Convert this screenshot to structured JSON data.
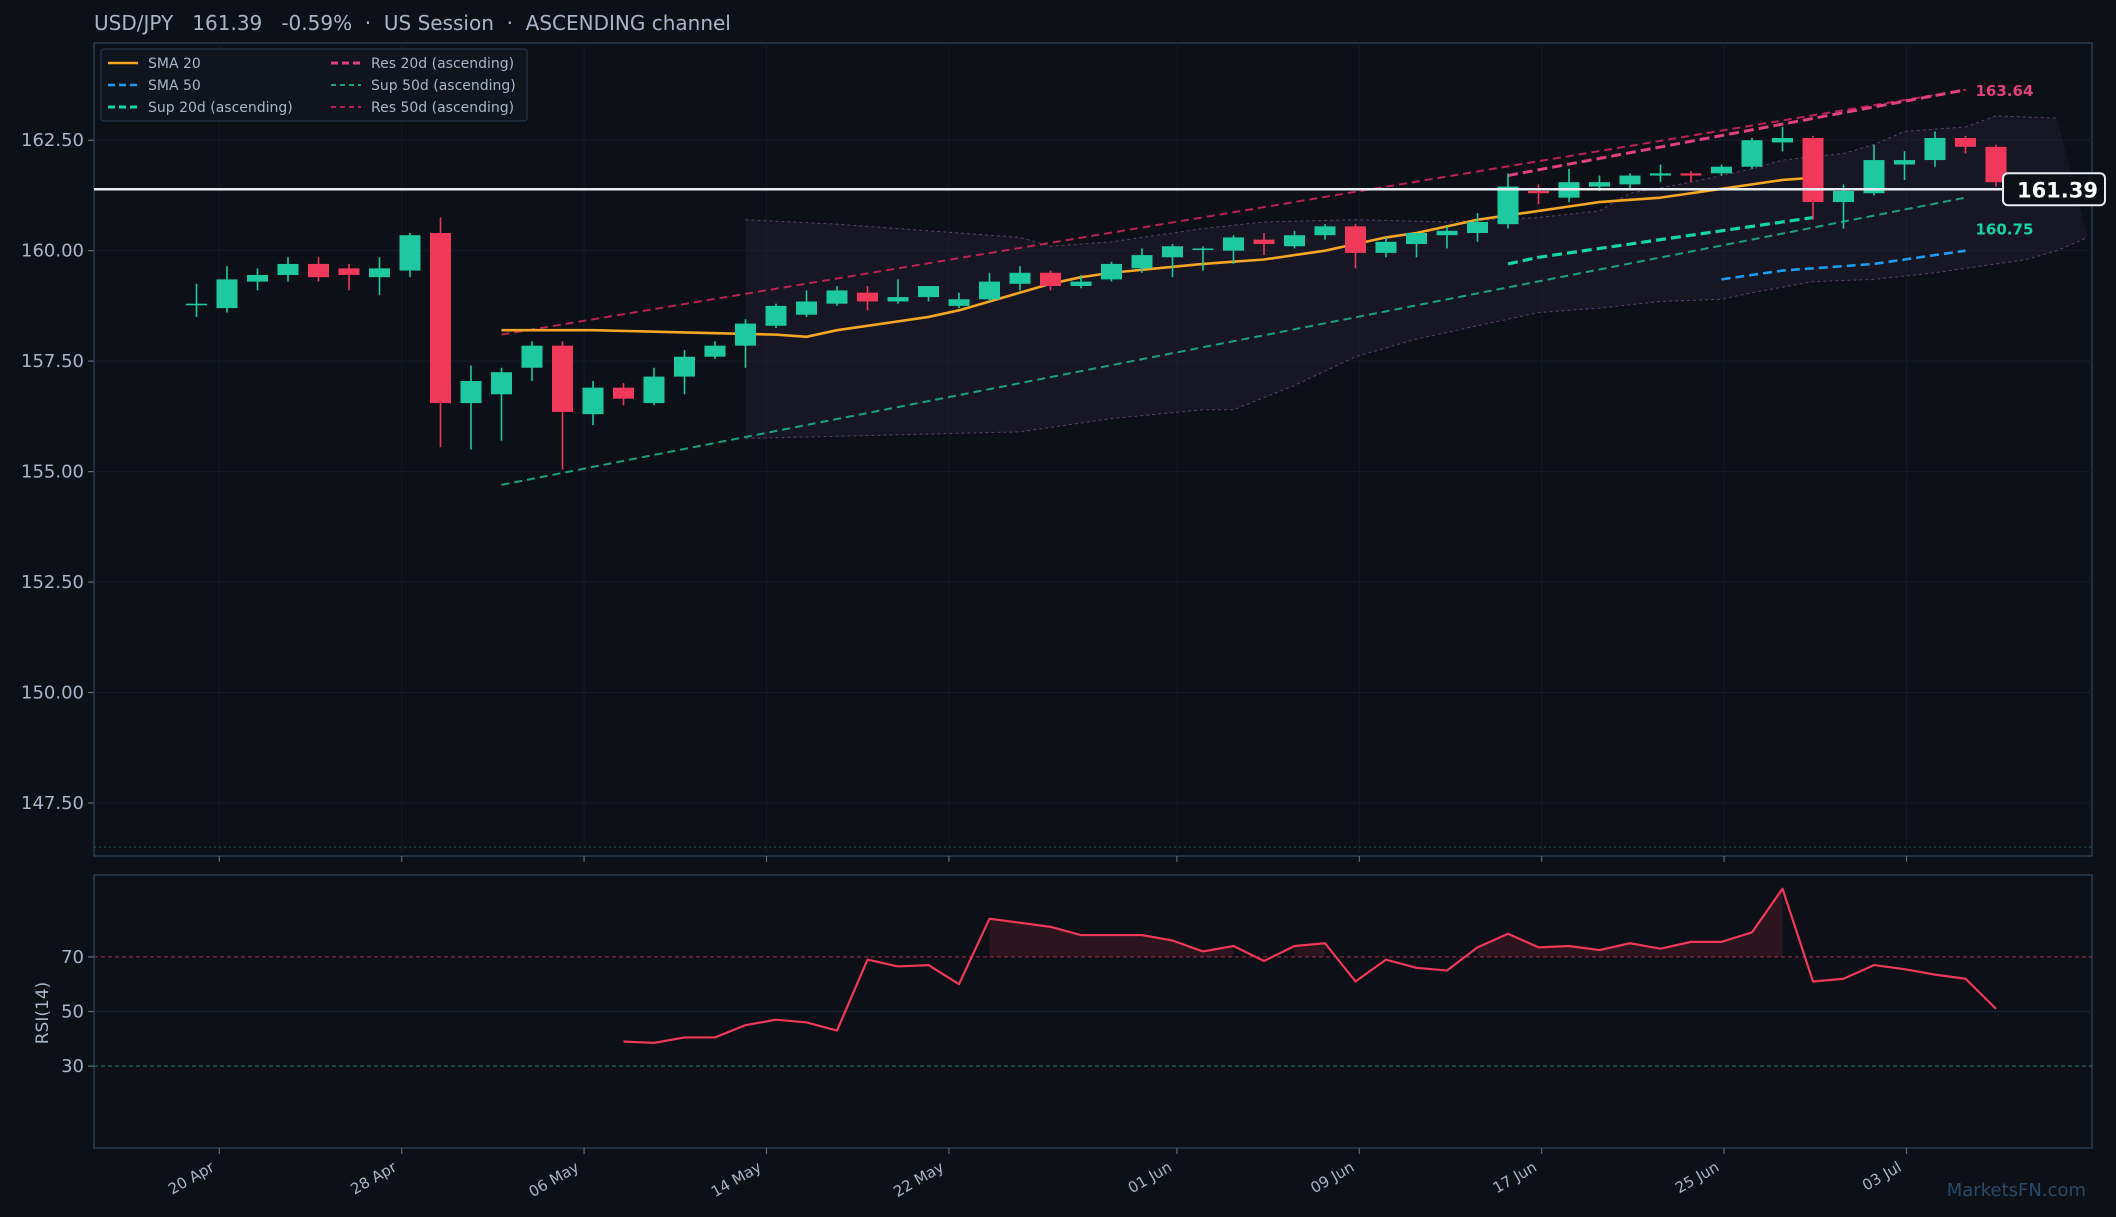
{
  "header": {
    "title": "USD/JPY   161.39   -0.59%  ·  US Session  ·  ASCENDING channel"
  },
  "colors": {
    "background": "#0d1017",
    "panel_border": "#2a3a4f",
    "up": "#1ec8a0",
    "down": "#f0385a",
    "sma20": "#f5a623",
    "sma50": "#1e9bf0",
    "res20": "#e0417e",
    "sup20": "#12d6a6",
    "sup50": "#1aa37a",
    "res50": "#b8234f",
    "rsi": "#f0385a",
    "last_price_line": "#e8edf2",
    "text": "#a9b4c6"
  },
  "watermark": "MarketsFN.com",
  "chart_data": {
    "type": "candlestick",
    "title": "USD/JPY   161.39   -0.59%  ·  US Session  ·  ASCENDING channel",
    "x_start": "2024-04-19",
    "x_tick_labels": [
      "20 Apr",
      "28 Apr",
      "06 May",
      "14 May",
      "22 May",
      "01 Jun",
      "09 Jun",
      "17 Jun",
      "25 Jun",
      "03 Jul"
    ],
    "ylim": [
      146.3,
      164.7
    ],
    "y_tick_labels": [
      "162.50",
      "160.00",
      "157.50",
      "155.00",
      "152.50",
      "150.00",
      "147.50"
    ],
    "grid": true,
    "legend_position": "top-left",
    "legend": [
      "SMA 20",
      "SMA 50",
      "Sup 20d (ascending)",
      "Res 20d (ascending)",
      "Sup 50d (ascending)",
      "Res 50d (ascending)"
    ],
    "candles": [
      {
        "d": "2024-04-19",
        "o": 158.8,
        "h": 159.25,
        "l": 158.5,
        "c": 158.8
      },
      {
        "d": "2024-04-20",
        "o": 158.7,
        "h": 159.65,
        "l": 158.6,
        "c": 159.35
      },
      {
        "d": "2024-04-21",
        "o": 159.3,
        "h": 159.6,
        "l": 159.1,
        "c": 159.45
      },
      {
        "d": "2024-04-22",
        "o": 159.45,
        "h": 159.85,
        "l": 159.3,
        "c": 159.7
      },
      {
        "d": "2024-04-23",
        "o": 159.7,
        "h": 159.85,
        "l": 159.3,
        "c": 159.4
      },
      {
        "d": "2024-04-24",
        "o": 159.6,
        "h": 159.7,
        "l": 159.1,
        "c": 159.45
      },
      {
        "d": "2024-04-25",
        "o": 159.4,
        "h": 159.85,
        "l": 159.0,
        "c": 159.6
      },
      {
        "d": "2024-04-26",
        "o": 159.55,
        "h": 160.4,
        "l": 159.4,
        "c": 160.35
      },
      {
        "d": "2024-04-27",
        "o": 160.4,
        "h": 160.75,
        "l": 155.55,
        "c": 156.55
      },
      {
        "d": "2024-04-28",
        "o": 156.55,
        "h": 157.4,
        "l": 155.5,
        "c": 157.05
      },
      {
        "d": "2024-04-29",
        "o": 156.75,
        "h": 157.35,
        "l": 155.7,
        "c": 157.25
      },
      {
        "d": "2024-04-30",
        "o": 157.35,
        "h": 157.95,
        "l": 157.05,
        "c": 157.85
      },
      {
        "d": "2024-05-01",
        "o": 157.85,
        "h": 157.95,
        "l": 155.05,
        "c": 156.35
      },
      {
        "d": "2024-05-02",
        "o": 156.3,
        "h": 157.05,
        "l": 156.05,
        "c": 156.9
      },
      {
        "d": "2024-05-03",
        "o": 156.9,
        "h": 157.0,
        "l": 156.5,
        "c": 156.65
      },
      {
        "d": "2024-05-04",
        "o": 156.55,
        "h": 157.35,
        "l": 156.5,
        "c": 157.15
      },
      {
        "d": "2024-05-05",
        "o": 157.15,
        "h": 157.75,
        "l": 156.75,
        "c": 157.6
      },
      {
        "d": "2024-05-06",
        "o": 157.6,
        "h": 157.95,
        "l": 157.55,
        "c": 157.85
      },
      {
        "d": "2024-05-07",
        "o": 157.85,
        "h": 158.45,
        "l": 157.35,
        "c": 158.35
      },
      {
        "d": "2024-05-08",
        "o": 158.3,
        "h": 158.8,
        "l": 158.25,
        "c": 158.75
      },
      {
        "d": "2024-05-09",
        "o": 158.55,
        "h": 159.1,
        "l": 158.5,
        "c": 158.85
      },
      {
        "d": "2024-05-10",
        "o": 158.8,
        "h": 159.2,
        "l": 158.75,
        "c": 159.1
      },
      {
        "d": "2024-05-11",
        "o": 159.05,
        "h": 159.2,
        "l": 158.65,
        "c": 158.85
      },
      {
        "d": "2024-05-12",
        "o": 158.85,
        "h": 159.35,
        "l": 158.8,
        "c": 158.95
      },
      {
        "d": "2024-05-13",
        "o": 158.95,
        "h": 159.2,
        "l": 158.85,
        "c": 159.2
      },
      {
        "d": "2024-05-14",
        "o": 158.75,
        "h": 159.05,
        "l": 158.7,
        "c": 158.9
      },
      {
        "d": "2024-05-15",
        "o": 158.9,
        "h": 159.5,
        "l": 158.85,
        "c": 159.3
      },
      {
        "d": "2024-05-16",
        "o": 159.25,
        "h": 159.65,
        "l": 159.1,
        "c": 159.5
      },
      {
        "d": "2024-05-17",
        "o": 159.5,
        "h": 159.55,
        "l": 159.1,
        "c": 159.2
      },
      {
        "d": "2024-05-18",
        "o": 159.2,
        "h": 159.45,
        "l": 159.15,
        "c": 159.3
      },
      {
        "d": "2024-05-19",
        "o": 159.35,
        "h": 159.75,
        "l": 159.3,
        "c": 159.7
      },
      {
        "d": "2024-05-20",
        "o": 159.6,
        "h": 160.05,
        "l": 159.5,
        "c": 159.9
      },
      {
        "d": "2024-05-21",
        "o": 159.85,
        "h": 160.15,
        "l": 159.4,
        "c": 160.1
      },
      {
        "d": "2024-05-22",
        "o": 160.05,
        "h": 160.1,
        "l": 159.55,
        "c": 160.05
      },
      {
        "d": "2024-05-23",
        "o": 160.0,
        "h": 160.35,
        "l": 159.7,
        "c": 160.3
      },
      {
        "d": "2024-05-24",
        "o": 160.25,
        "h": 160.4,
        "l": 159.9,
        "c": 160.15
      },
      {
        "d": "2024-05-25",
        "o": 160.1,
        "h": 160.45,
        "l": 160.05,
        "c": 160.35
      },
      {
        "d": "2024-05-26",
        "o": 160.35,
        "h": 160.6,
        "l": 160.25,
        "c": 160.55
      },
      {
        "d": "2024-05-27",
        "o": 160.55,
        "h": 160.6,
        "l": 159.6,
        "c": 159.95
      },
      {
        "d": "2024-05-28",
        "o": 159.95,
        "h": 160.3,
        "l": 159.85,
        "c": 160.2
      },
      {
        "d": "2024-05-29",
        "o": 160.15,
        "h": 160.4,
        "l": 159.85,
        "c": 160.4
      },
      {
        "d": "2024-05-30",
        "o": 160.35,
        "h": 160.55,
        "l": 160.05,
        "c": 160.45
      },
      {
        "d": "2024-05-31",
        "o": 160.4,
        "h": 160.85,
        "l": 160.2,
        "c": 160.65
      },
      {
        "d": "2024-06-01",
        "o": 160.6,
        "h": 161.75,
        "l": 160.5,
        "c": 161.45
      },
      {
        "d": "2024-06-02",
        "o": 161.35,
        "h": 161.5,
        "l": 161.05,
        "c": 161.3
      },
      {
        "d": "2024-06-03",
        "o": 161.2,
        "h": 161.85,
        "l": 161.1,
        "c": 161.55
      },
      {
        "d": "2024-06-04",
        "o": 161.45,
        "h": 161.7,
        "l": 161.35,
        "c": 161.55
      },
      {
        "d": "2024-06-05",
        "o": 161.5,
        "h": 161.75,
        "l": 161.4,
        "c": 161.7
      },
      {
        "d": "2024-06-06",
        "o": 161.7,
        "h": 161.95,
        "l": 161.55,
        "c": 161.75
      },
      {
        "d": "2024-06-07",
        "o": 161.75,
        "h": 161.8,
        "l": 161.55,
        "c": 161.7
      },
      {
        "d": "2024-06-08",
        "o": 161.75,
        "h": 161.95,
        "l": 161.7,
        "c": 161.9
      },
      {
        "d": "2024-06-09",
        "o": 161.9,
        "h": 162.55,
        "l": 161.85,
        "c": 162.5
      },
      {
        "d": "2024-06-10",
        "o": 162.45,
        "h": 162.8,
        "l": 162.25,
        "c": 162.55
      },
      {
        "d": "2024-06-11",
        "o": 162.55,
        "h": 162.6,
        "l": 160.7,
        "c": 161.1
      },
      {
        "d": "2024-06-12",
        "o": 161.1,
        "h": 161.5,
        "l": 160.5,
        "c": 161.35
      },
      {
        "d": "2024-06-13",
        "o": 161.3,
        "h": 162.4,
        "l": 161.25,
        "c": 162.05
      },
      {
        "d": "2024-06-14",
        "o": 161.95,
        "h": 162.25,
        "l": 161.6,
        "c": 162.05
      },
      {
        "d": "2024-06-15",
        "o": 162.05,
        "h": 162.7,
        "l": 161.9,
        "c": 162.55
      },
      {
        "d": "2024-06-16",
        "o": 162.55,
        "h": 162.6,
        "l": 162.2,
        "c": 162.35
      },
      {
        "d": "2024-06-17",
        "o": 162.35,
        "h": 162.4,
        "l": 161.45,
        "c": 161.55
      }
    ],
    "overlays": {
      "sma20": [
        [
          10,
          158.2
        ],
        [
          13,
          158.2
        ],
        [
          16,
          158.15
        ],
        [
          19,
          158.1
        ],
        [
          20,
          158.05
        ],
        [
          21,
          158.2
        ],
        [
          22,
          158.3
        ],
        [
          23,
          158.4
        ],
        [
          24,
          158.5
        ],
        [
          25,
          158.65
        ],
        [
          26,
          158.85
        ],
        [
          27,
          159.05
        ],
        [
          28,
          159.25
        ],
        [
          29,
          159.4
        ],
        [
          30,
          159.5
        ],
        [
          33,
          159.7
        ],
        [
          34,
          159.75
        ],
        [
          35,
          159.8
        ],
        [
          36,
          159.9
        ],
        [
          37,
          160.0
        ],
        [
          38,
          160.15
        ],
        [
          39,
          160.3
        ],
        [
          40,
          160.4
        ],
        [
          41,
          160.55
        ],
        [
          42,
          160.7
        ],
        [
          43,
          160.8
        ],
        [
          44,
          160.9
        ],
        [
          45,
          161.0
        ],
        [
          46,
          161.1
        ],
        [
          47,
          161.15
        ],
        [
          48,
          161.2
        ],
        [
          49,
          161.3
        ],
        [
          50,
          161.4
        ],
        [
          51,
          161.5
        ],
        [
          52,
          161.6
        ],
        [
          53,
          161.65
        ]
      ],
      "sma50": [
        [
          50,
          159.35
        ],
        [
          51,
          159.45
        ],
        [
          52,
          159.55
        ],
        [
          53,
          159.6
        ],
        [
          54,
          159.65
        ],
        [
          55,
          159.7
        ],
        [
          56,
          159.8
        ],
        [
          57,
          159.9
        ],
        [
          58,
          160.0
        ]
      ],
      "sup20": [
        [
          43,
          159.7
        ],
        [
          44,
          159.85
        ],
        [
          45,
          159.95
        ],
        [
          46,
          160.05
        ],
        [
          47,
          160.15
        ],
        [
          48,
          160.25
        ],
        [
          49,
          160.35
        ],
        [
          50,
          160.45
        ],
        [
          51,
          160.55
        ],
        [
          52,
          160.65
        ],
        [
          53,
          160.75
        ]
      ],
      "res20": [
        [
          43,
          161.7
        ],
        [
          58,
          163.64
        ]
      ],
      "sup50": [
        [
          10,
          154.7
        ],
        [
          58,
          161.2
        ]
      ],
      "res50": [
        [
          10,
          158.1
        ],
        [
          58,
          163.64
        ]
      ],
      "band_upper": [
        [
          18,
          160.7
        ],
        [
          21,
          160.6
        ],
        [
          24,
          160.45
        ],
        [
          27,
          160.3
        ],
        [
          28,
          160.1
        ],
        [
          30,
          160.2
        ],
        [
          33,
          160.5
        ],
        [
          35,
          160.65
        ],
        [
          38,
          160.7
        ],
        [
          41,
          160.65
        ],
        [
          44,
          160.75
        ],
        [
          46,
          160.9
        ],
        [
          47,
          161.3
        ],
        [
          49,
          161.55
        ],
        [
          51,
          161.85
        ],
        [
          52,
          162.05
        ],
        [
          54,
          162.2
        ],
        [
          55,
          162.4
        ],
        [
          56,
          162.7
        ],
        [
          58,
          162.8
        ],
        [
          59,
          163.05
        ],
        [
          61,
          163.0
        ]
      ],
      "band_lower": [
        [
          18,
          155.75
        ],
        [
          21,
          155.8
        ],
        [
          24,
          155.85
        ],
        [
          27,
          155.9
        ],
        [
          28,
          156.0
        ],
        [
          30,
          156.2
        ],
        [
          33,
          156.4
        ],
        [
          34,
          156.4
        ],
        [
          36,
          156.95
        ],
        [
          38,
          157.6
        ],
        [
          40,
          158.0
        ],
        [
          42,
          158.3
        ],
        [
          44,
          158.6
        ],
        [
          46,
          158.7
        ],
        [
          48,
          158.85
        ],
        [
          50,
          158.9
        ],
        [
          51,
          159.05
        ],
        [
          53,
          159.3
        ],
        [
          55,
          159.35
        ],
        [
          57,
          159.5
        ],
        [
          59,
          159.7
        ],
        [
          60,
          159.8
        ],
        [
          61,
          160.0
        ],
        [
          62,
          160.3
        ]
      ]
    },
    "last_price": 161.39,
    "last_price_label": "161.39",
    "res_label": "163.64",
    "sup_label": "160.75",
    "baseline": 146.5,
    "rsi": {
      "ylabel": "RSI(14)",
      "ylim": [
        0,
        100
      ],
      "y_tick_labels": [
        "70",
        "50",
        "30"
      ],
      "levels": [
        70,
        50,
        30
      ],
      "values": [
        [
          14,
          39
        ],
        [
          15,
          38.5
        ],
        [
          16,
          40.5
        ],
        [
          17,
          40.5
        ],
        [
          18,
          45
        ],
        [
          19,
          47
        ],
        [
          20,
          46
        ],
        [
          21,
          43
        ],
        [
          22,
          69
        ],
        [
          23,
          66.5
        ],
        [
          24,
          67
        ],
        [
          25,
          60
        ],
        [
          26,
          84
        ],
        [
          27,
          82.5
        ],
        [
          28,
          81
        ],
        [
          29,
          78
        ],
        [
          30,
          78
        ],
        [
          31,
          78
        ],
        [
          32,
          76
        ],
        [
          33,
          72
        ],
        [
          34,
          74
        ],
        [
          35,
          68.5
        ],
        [
          36,
          74
        ],
        [
          37,
          75
        ],
        [
          38,
          61
        ],
        [
          39,
          69
        ],
        [
          40,
          66
        ],
        [
          41,
          65
        ],
        [
          42,
          73.5
        ],
        [
          43,
          78.5
        ],
        [
          44,
          73.5
        ],
        [
          45,
          74
        ],
        [
          46,
          72.5
        ],
        [
          47,
          75
        ],
        [
          48,
          73
        ],
        [
          49,
          75.5
        ],
        [
          50,
          75.5
        ],
        [
          51,
          79
        ],
        [
          52,
          95
        ],
        [
          53,
          61
        ],
        [
          54,
          62
        ],
        [
          55,
          67
        ],
        [
          56,
          65.5
        ],
        [
          57,
          63.5
        ],
        [
          58,
          62
        ],
        [
          59,
          51
        ]
      ]
    }
  }
}
